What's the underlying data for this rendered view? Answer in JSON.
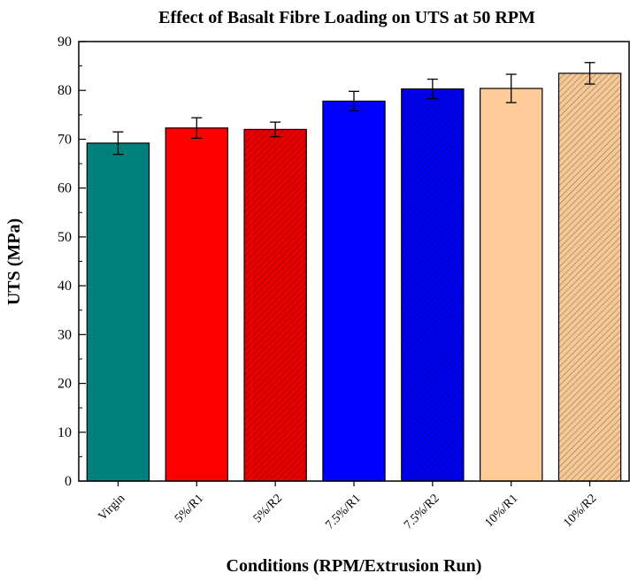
{
  "chart_data": {
    "type": "bar",
    "title": "Effect of Basalt Fibre Loading on UTS at 50 RPM",
    "xlabel": "Conditions (RPM/Extrusion Run)",
    "ylabel": "UTS (MPa)",
    "ylim": [
      0,
      90
    ],
    "yticks": [
      0,
      10,
      20,
      30,
      40,
      50,
      60,
      70,
      80,
      90
    ],
    "categories": [
      "Virgin",
      "5%/R1",
      "5%/R2",
      "7.5%/R1",
      "7.5%/R2",
      "10%/R1",
      "10%/R2"
    ],
    "values": [
      69.2,
      72.3,
      72.0,
      77.8,
      80.3,
      80.4,
      83.5
    ],
    "errors": [
      2.3,
      2.1,
      1.5,
      2.0,
      2.0,
      2.9,
      2.2
    ],
    "colors": [
      "#00807c",
      "#ff0000",
      "#e00000",
      "#0000ff",
      "#0000e6",
      "#ffcc99",
      "#f2c396"
    ],
    "hatched": [
      false,
      false,
      true,
      false,
      true,
      false,
      true
    ],
    "grid": false,
    "legend": "none"
  }
}
